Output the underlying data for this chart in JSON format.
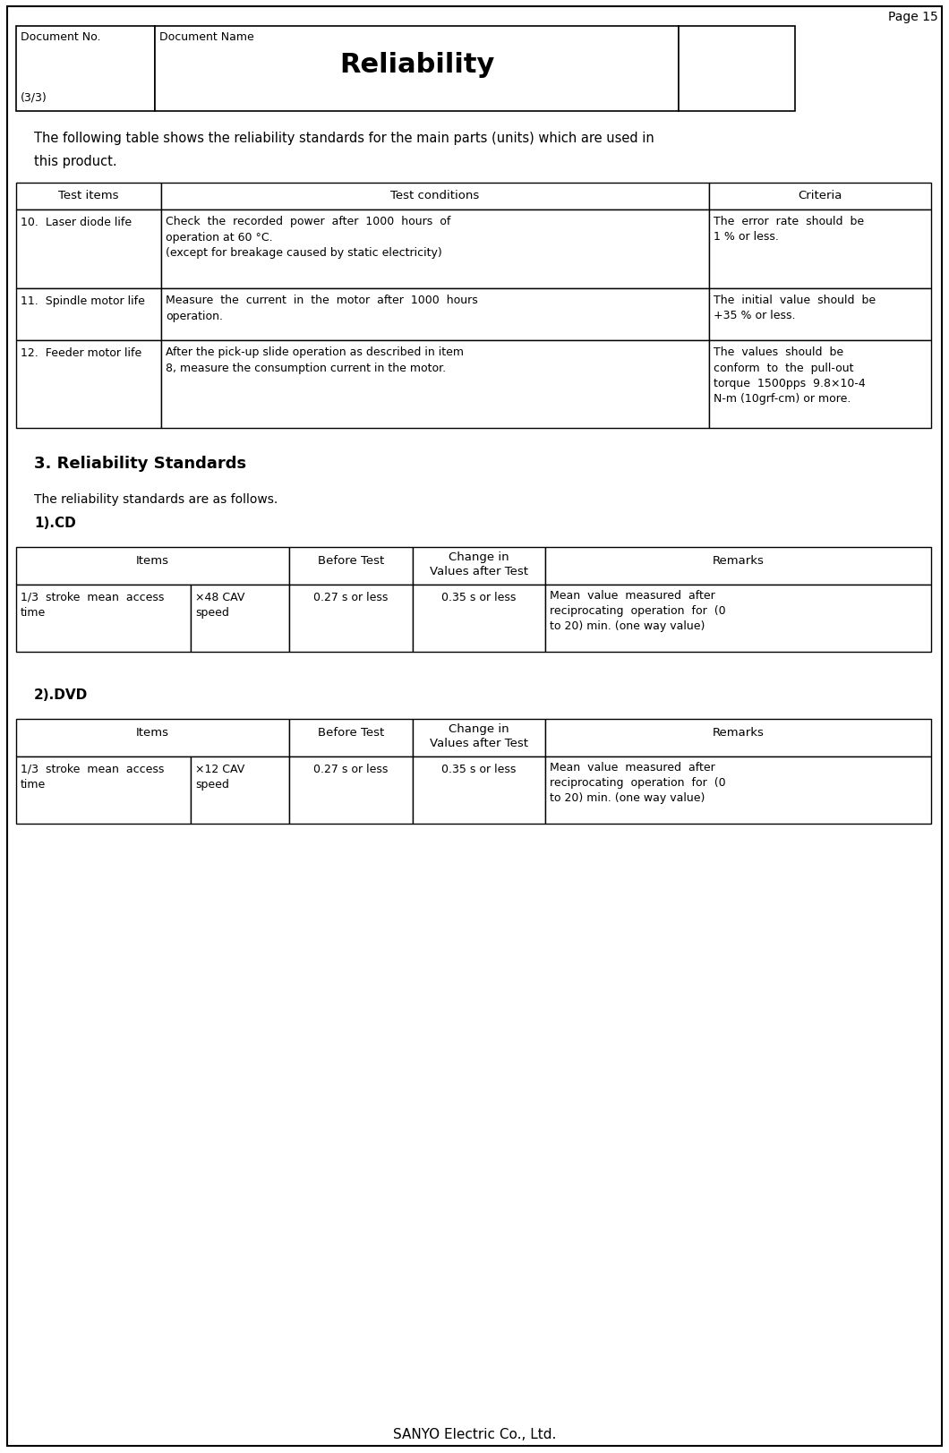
{
  "page_number": "Page 15",
  "header": {
    "doc_no_label": "Document No.",
    "doc_no_value": "(3/3)",
    "doc_name_label": "Document Name",
    "doc_title": "Reliability"
  },
  "intro_text_line1": "The following table shows the reliability standards for the main parts (units) which are used in",
  "intro_text_line2": "this product.",
  "main_table_headers": [
    "Test items",
    "Test conditions",
    "Criteria"
  ],
  "main_table_rows": [
    {
      "col1": "10.  Laser diode life",
      "col2": "Check  the  recorded  power  after  1000  hours  of\noperation at 60 °C.\n(except for breakage caused by static electricity)",
      "col3": "The  error  rate  should  be\n1 % or less."
    },
    {
      "col1": "11.  Spindle motor life",
      "col2": "Measure  the  current  in  the  motor  after  1000  hours\noperation.",
      "col3": "The  initial  value  should  be\n+35 % or less."
    },
    {
      "col1": "12.  Feeder motor life",
      "col2": "After the pick-up slide operation as described in item\n8, measure the consumption current in the motor.",
      "col3": "The  values  should  be\nconform  to  the  pull-out\ntorque  1500pps  9.8×10-4\nN-m (10grf-cm) or more."
    }
  ],
  "section3_title": "3. Reliability Standards",
  "section3_text": "The reliability standards are as follows.",
  "cd_label": "1).CD",
  "cd_table_headers": [
    "Items",
    "Before Test",
    "Change in\nValues after Test",
    "Remarks"
  ],
  "cd_row": {
    "col1": "1/3  stroke  mean  access\ntime",
    "col2": "×48 CAV\nspeed",
    "col3": "0.27 s or less",
    "col4": "0.35 s or less",
    "col5": "Mean  value  measured  after\nreciprocating  operation  for  (0\nto 20) min. (one way value)"
  },
  "dvd_label": "2).DVD",
  "dvd_row": {
    "col1": "1/3  stroke  mean  access\ntime",
    "col2": "×12 CAV\nspeed",
    "col3": "0.27 s or less",
    "col4": "0.35 s or less",
    "col5": "Mean  value  measured  after\nreciprocating  operation  for  (0\nto 20) min. (one way value)"
  },
  "footer": "SANYO Electric Co., Ltd.",
  "bg_color": "#ffffff",
  "border_color": "#000000"
}
